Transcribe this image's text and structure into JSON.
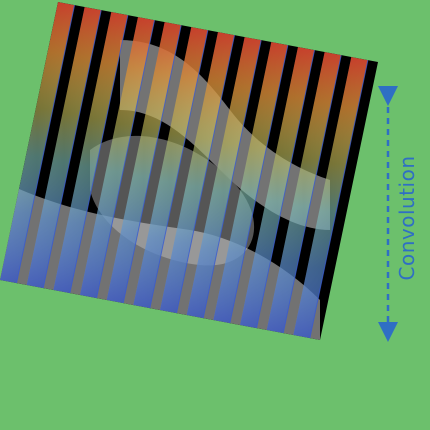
{
  "background_color": "#6cc06c",
  "annotation": {
    "label": "Convolution",
    "color": "#2f6fc4"
  },
  "panel": {
    "strip_count": 12,
    "colormap_top": "#e0402a",
    "colormap_mid": "#7fd6c8",
    "colormap_bottom": "#3050c8",
    "image_background": "#000000"
  }
}
